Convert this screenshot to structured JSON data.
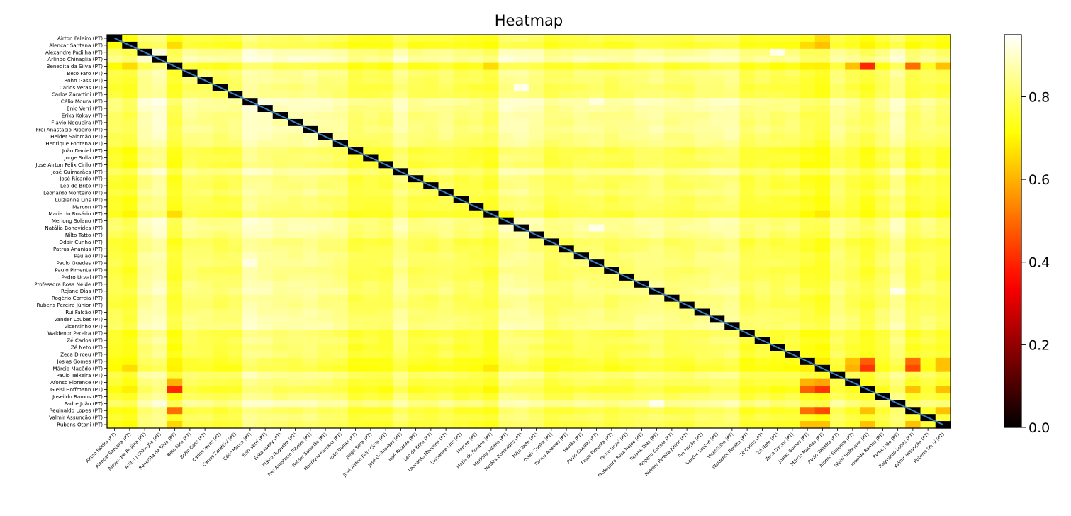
{
  "chart_data": {
    "type": "heatmap",
    "title": "Heatmap",
    "labels": [
      "Airton Faleiro (PT)",
      "Alencar Santana (PT)",
      "Alexandre Padilha (PT)",
      "Arlindo Chinaglia (PT)",
      "Benedita da Silva (PT)",
      "Beto Faro (PT)",
      "Bohn Gass (PT)",
      "Carlos Veras (PT)",
      "Carlos Zarattini (PT)",
      "Célio Moura (PT)",
      "Enio Verri (PT)",
      "Erika Kokay (PT)",
      "Flávio Nogueira (PT)",
      "Frei Anastacio Ribeiro (PT)",
      "Helder Salomão (PT)",
      "Henrique Fontana (PT)",
      "João Daniel (PT)",
      "Jorge Solla (PT)",
      "José Airton Félix Cirilo (PT)",
      "José Guimarães (PT)",
      "José Ricardo (PT)",
      "Leo de Brito (PT)",
      "Leonardo Monteiro (PT)",
      "Luizianne Lins (PT)",
      "Marcon (PT)",
      "Maria do Rosário (PT)",
      "Merlong Solano (PT)",
      "Natália Bonavides (PT)",
      "Nilto Tatto (PT)",
      "Odair Cunha (PT)",
      "Patrus Ananias (PT)",
      "Paulão (PT)",
      "Paulo Guedes (PT)",
      "Paulo Pimenta (PT)",
      "Pedro Uczai (PT)",
      "Professora Rosa Neide (PT)",
      "Rejane Dias (PT)",
      "Rogério Correia (PT)",
      "Rubens Pereira Júnior (PT)",
      "Rui Falcão (PT)",
      "Vander Loubet (PT)",
      "Vicentinho (PT)",
      "Waldenor Pereira (PT)",
      "Zé Carlos (PT)",
      "Zé Neto (PT)",
      "Zeca Dirceu (PT)",
      "Josias Gomes (PT)",
      "Márcio Macêdo (PT)",
      "Paulo Teixeira (PT)",
      "Afonso Florence (PT)",
      "Gleisi Hoffmann (PT)",
      "Joseildo Ramos (PT)",
      "Padre João (PT)",
      "Reginaldo Lopes (PT)",
      "Valmir Assunção (PT)",
      "Rubens Otoni (PT)"
    ],
    "colormap": "hot",
    "vmin": 0.0,
    "vmax": 0.95,
    "colorbar_ticks": [
      0.0,
      0.2,
      0.4,
      0.6,
      0.8
    ],
    "colorbar_tick_labels": [
      "0.0",
      "0.2",
      "0.4",
      "0.6",
      "0.8"
    ],
    "diagonal_value": 0.0,
    "diagonal_line_color": "#3b7bbf",
    "base_value": 0.84,
    "row_offsets": [
      -0.07,
      -0.1,
      0.03,
      0.06,
      -0.1,
      -0.01,
      -0.02,
      -0.04,
      -0.03,
      0.06,
      0.04,
      0.02,
      0.02,
      0.03,
      0.01,
      0.0,
      -0.06,
      -0.05,
      -0.06,
      0.02,
      -0.04,
      -0.04,
      -0.02,
      -0.05,
      -0.05,
      -0.08,
      0.03,
      0.03,
      0.01,
      -0.04,
      -0.03,
      -0.01,
      -0.01,
      -0.03,
      -0.02,
      0.0,
      0.01,
      -0.02,
      -0.02,
      0.0,
      0.01,
      0.02,
      -0.06,
      -0.04,
      -0.06,
      -0.05,
      -0.09,
      -0.11,
      -0.01,
      -0.05,
      -0.09,
      -0.04,
      0.03,
      -0.07,
      -0.04,
      -0.07
    ],
    "cells": [
      {
        "row": 49,
        "col": 4,
        "value": 0.6
      },
      {
        "row": 50,
        "col": 4,
        "value": 0.4
      },
      {
        "row": 53,
        "col": 4,
        "value": 0.5
      },
      {
        "row": 55,
        "col": 4,
        "value": 0.65
      },
      {
        "row": 4,
        "col": 50,
        "value": 0.4
      },
      {
        "row": 4,
        "col": 53,
        "value": 0.5
      },
      {
        "row": 4,
        "col": 49,
        "value": 0.62
      },
      {
        "row": 4,
        "col": 55,
        "value": 0.62
      },
      {
        "row": 4,
        "col": 1,
        "value": 0.66
      },
      {
        "row": 1,
        "col": 4,
        "value": 0.66
      },
      {
        "row": 47,
        "col": 50,
        "value": 0.42
      },
      {
        "row": 47,
        "col": 53,
        "value": 0.45
      },
      {
        "row": 46,
        "col": 50,
        "value": 0.48
      },
      {
        "row": 46,
        "col": 53,
        "value": 0.5
      },
      {
        "row": 50,
        "col": 46,
        "value": 0.48
      },
      {
        "row": 50,
        "col": 47,
        "value": 0.42
      },
      {
        "row": 53,
        "col": 46,
        "value": 0.5
      },
      {
        "row": 53,
        "col": 47,
        "value": 0.45
      },
      {
        "row": 49,
        "col": 46,
        "value": 0.6
      },
      {
        "row": 49,
        "col": 47,
        "value": 0.58
      },
      {
        "row": 46,
        "col": 49,
        "value": 0.62
      },
      {
        "row": 47,
        "col": 49,
        "value": 0.6
      },
      {
        "row": 53,
        "col": 50,
        "value": 0.62
      },
      {
        "row": 50,
        "col": 53,
        "value": 0.62
      },
      {
        "row": 55,
        "col": 53,
        "value": 0.62
      },
      {
        "row": 53,
        "col": 55,
        "value": 0.62
      },
      {
        "row": 55,
        "col": 46,
        "value": 0.62
      },
      {
        "row": 55,
        "col": 47,
        "value": 0.62
      },
      {
        "row": 46,
        "col": 55,
        "value": 0.62
      },
      {
        "row": 47,
        "col": 55,
        "value": 0.62
      },
      {
        "row": 50,
        "col": 55,
        "value": 0.62
      },
      {
        "row": 55,
        "col": 50,
        "value": 0.62
      },
      {
        "row": 1,
        "col": 47,
        "value": 0.62
      },
      {
        "row": 47,
        "col": 1,
        "value": 0.66
      },
      {
        "row": 25,
        "col": 4,
        "value": 0.66
      },
      {
        "row": 25,
        "col": 26,
        "value": 0.72
      },
      {
        "row": 25,
        "col": 47,
        "value": 0.68
      },
      {
        "row": 47,
        "col": 25,
        "value": 0.68
      },
      {
        "row": 4,
        "col": 25,
        "value": 0.66
      },
      {
        "row": 0,
        "col": 47,
        "value": 0.66
      },
      {
        "row": 1,
        "col": 46,
        "value": 0.66
      }
    ],
    "light_cells": [
      {
        "row": 9,
        "col": 9,
        "value": 0.92
      },
      {
        "row": 27,
        "col": 32,
        "value": 0.93
      },
      {
        "row": 7,
        "col": 27,
        "value": 0.93
      },
      {
        "row": 2,
        "col": 44,
        "value": 0.93
      },
      {
        "row": 52,
        "col": 36,
        "value": 0.93
      },
      {
        "row": 36,
        "col": 52,
        "value": 0.93
      },
      {
        "row": 9,
        "col": 32,
        "value": 0.92
      },
      {
        "row": 32,
        "col": 9,
        "value": 0.92
      }
    ]
  }
}
